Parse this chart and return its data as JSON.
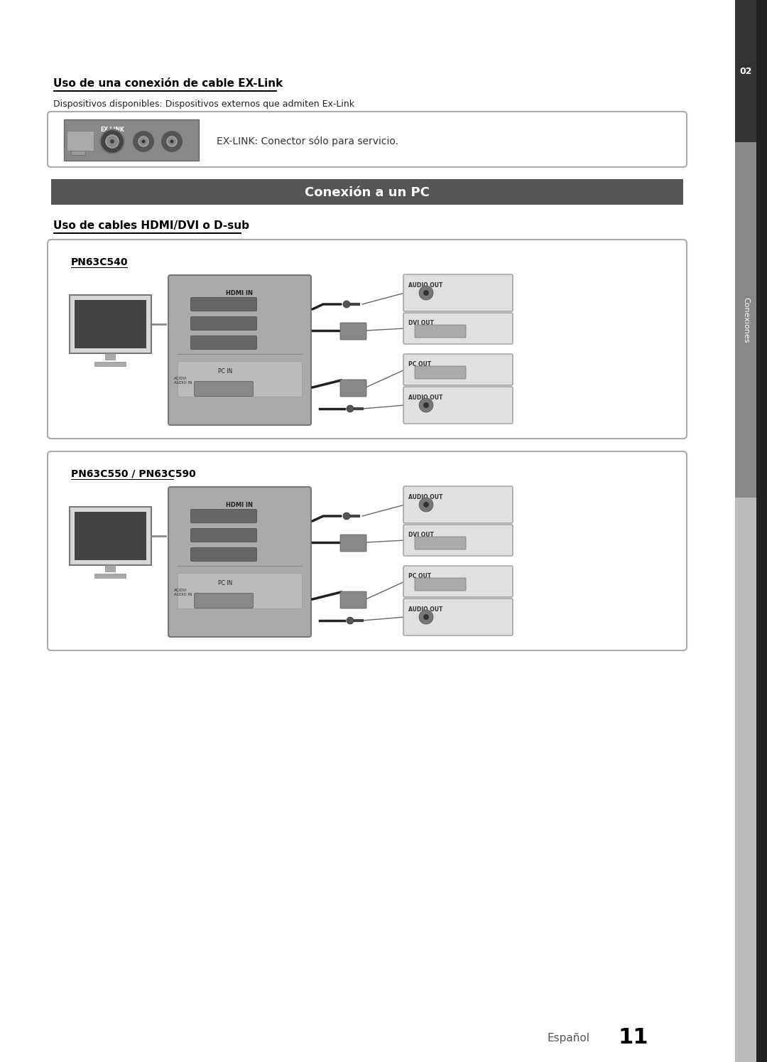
{
  "page_bg": "#ffffff",
  "sidebar_color": "#555555",
  "sidebar_dark": "#333333",
  "section_header_bg": "#555555",
  "section_header_text": "#ffffff",
  "section_header_label": "Conexión a un PC",
  "exlink_title": "Uso de una conexión de cable EX-Link",
  "exlink_subtitle": "Dispositivos disponibles: Dispositivos externos que admiten Ex-Link",
  "exlink_note": "EX-LINK: Conector sólo para servicio.",
  "hdmi_title": "Uso de cables HDMI/DVI o D-sub",
  "model1": "PN63C540",
  "model2": "PN63C550 / PN63C590",
  "footer_text": "Español",
  "footer_page": "11",
  "sidebar_label": "Conexiones",
  "sidebar_num": "02"
}
